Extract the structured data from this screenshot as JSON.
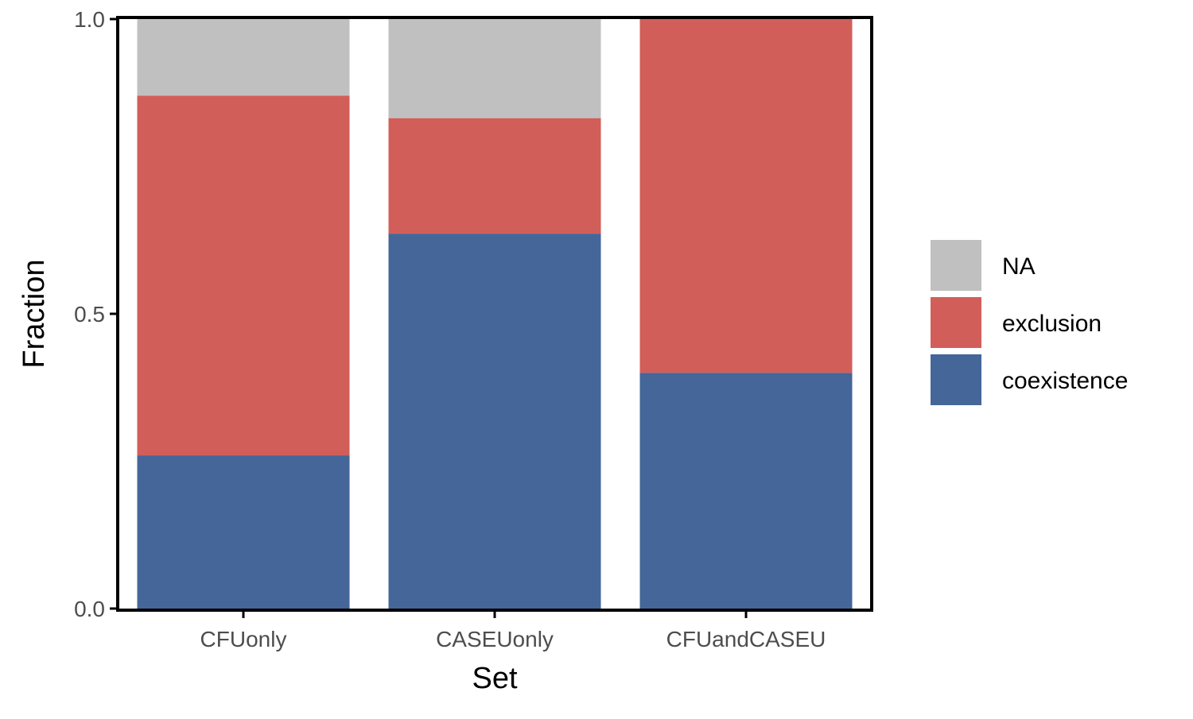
{
  "chart_data": {
    "type": "bar",
    "stacked": true,
    "title": "",
    "xlabel": "Set",
    "ylabel": "Fraction",
    "categories": [
      "CFUonly",
      "CASEUonly",
      "CFUandCASEU"
    ],
    "series": [
      {
        "name": "coexistence",
        "values": [
          0.26,
          0.636,
          0.4
        ],
        "color": "#456699"
      },
      {
        "name": "exclusion",
        "values": [
          0.61,
          0.196,
          0.6
        ],
        "color": "#d25e5a"
      },
      {
        "name": "NA",
        "values": [
          0.13,
          0.168,
          0.0
        ],
        "color": "#c0c0c0"
      }
    ],
    "ylim": [
      0,
      1
    ],
    "yticks": [
      0,
      0.5,
      1
    ],
    "ytick_labels": [
      "0.0",
      "0.5",
      "1.0"
    ],
    "legend": {
      "position": "right",
      "entries": [
        "NA",
        "exclusion",
        "coexistence"
      ]
    },
    "grid": false
  }
}
